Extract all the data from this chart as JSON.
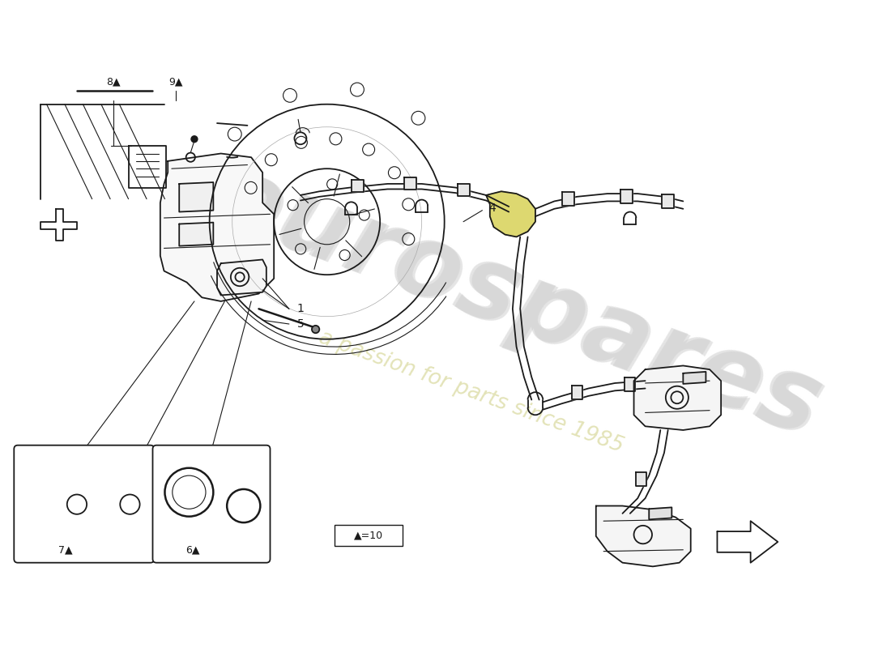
{
  "background_color": "#ffffff",
  "line_color": "#1a1a1a",
  "watermark_color_logo": "#e8e8e8",
  "watermark_color_text": "#e8e8c8",
  "label_font_size": 9,
  "lw_main": 1.3,
  "lw_thin": 0.8,
  "lw_thick": 1.8,
  "parts": {
    "labels": [
      "1",
      "4",
      "5",
      "6▲",
      "7▲",
      "8▲",
      "9▲"
    ],
    "legend_text": "▲=10"
  }
}
